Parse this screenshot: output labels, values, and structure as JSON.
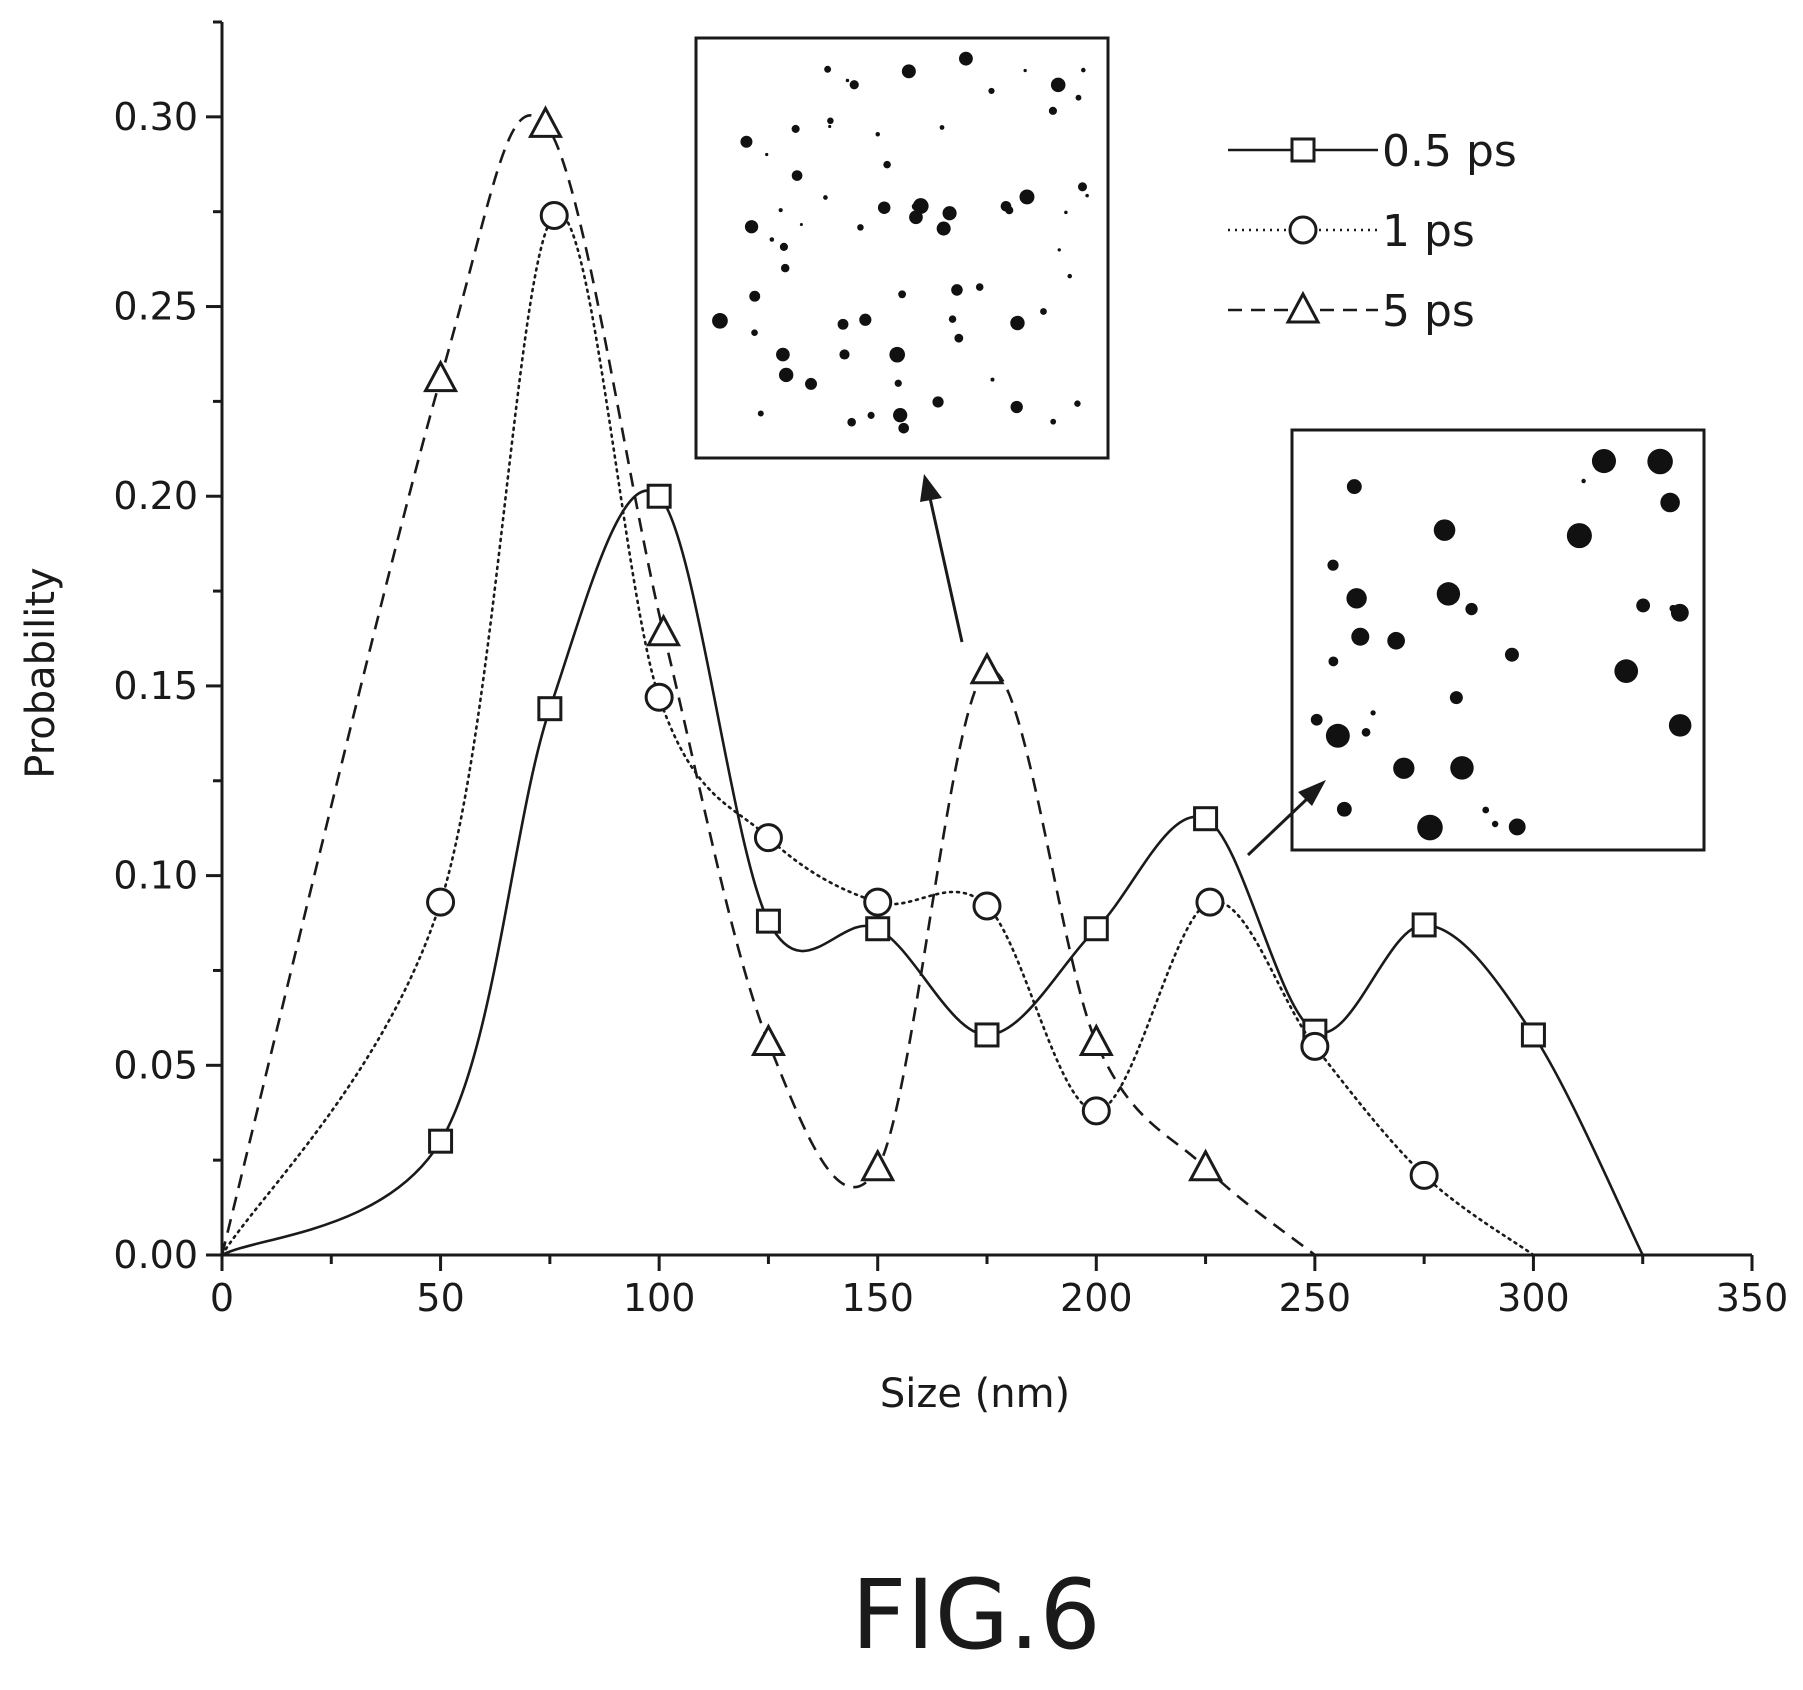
{
  "chart_data": {
    "type": "line",
    "xlabel": "Size (nm)",
    "ylabel": "Probability",
    "xlim": [
      0,
      350
    ],
    "ylim": [
      0,
      0.325
    ],
    "x_ticks": [
      "0",
      "50",
      "100",
      "150",
      "200",
      "250",
      "300",
      "350"
    ],
    "y_ticks": [
      "0.00",
      "0.05",
      "0.10",
      "0.15",
      "0.20",
      "0.25",
      "0.30"
    ],
    "grid": false,
    "legend_position": "top-right",
    "series": [
      {
        "name": "0.5 ps",
        "marker": "square",
        "line_style": "solid",
        "points": [
          [
            0,
            0.0
          ],
          [
            50,
            0.03
          ],
          [
            75,
            0.144
          ],
          [
            100,
            0.2
          ],
          [
            125,
            0.088
          ],
          [
            150,
            0.086
          ],
          [
            175,
            0.058
          ],
          [
            200,
            0.086
          ],
          [
            225,
            0.115
          ],
          [
            250,
            0.059
          ],
          [
            275,
            0.087
          ],
          [
            300,
            0.058
          ],
          [
            325,
            0.0
          ]
        ]
      },
      {
        "name": "1 ps",
        "marker": "circle",
        "line_style": "dotted",
        "points": [
          [
            0,
            0.0
          ],
          [
            50,
            0.093
          ],
          [
            76,
            0.274
          ],
          [
            100,
            0.147
          ],
          [
            125,
            0.11
          ],
          [
            150,
            0.093
          ],
          [
            175,
            0.092
          ],
          [
            200,
            0.038
          ],
          [
            226,
            0.093
          ],
          [
            250,
            0.055
          ],
          [
            275,
            0.021
          ],
          [
            300,
            0.0
          ]
        ]
      },
      {
        "name": "5 ps",
        "marker": "triangle",
        "line_style": "dashed",
        "points": [
          [
            0,
            0.0
          ],
          [
            50,
            0.231
          ],
          [
            74,
            0.298
          ],
          [
            101,
            0.164
          ],
          [
            125,
            0.056
          ],
          [
            150,
            0.023
          ],
          [
            175,
            0.154
          ],
          [
            200,
            0.056
          ],
          [
            225,
            0.023
          ],
          [
            250,
            0.0
          ]
        ]
      }
    ]
  },
  "figure_caption": "FIG.6",
  "insets": [
    {
      "points_to": "5 ps peak at 175 nm",
      "content": "micrograph-small-particles"
    },
    {
      "points_to": "0.5 ps peak at 225 nm",
      "content": "micrograph-large-particles"
    }
  ]
}
